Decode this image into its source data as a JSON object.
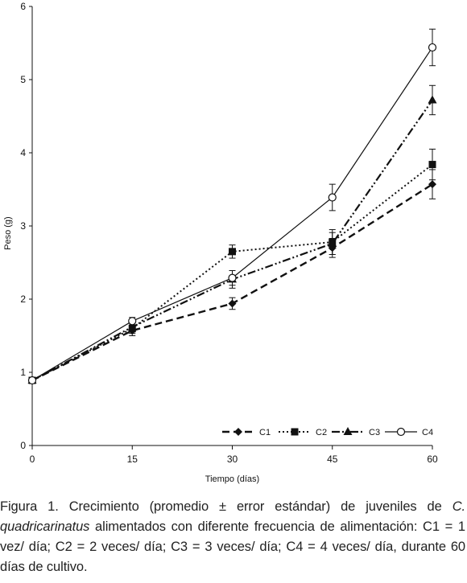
{
  "chart_data": {
    "type": "line",
    "x": [
      0,
      15,
      30,
      45,
      60
    ],
    "xlabel": "Tiempo (días)",
    "ylabel": "Peso (g)",
    "xticks": [
      "0",
      "15",
      "30",
      "45",
      "60"
    ],
    "yticks": [
      "0",
      "1",
      "2",
      "3",
      "4",
      "5",
      "6"
    ],
    "xlim": [
      0,
      60
    ],
    "ylim": [
      0,
      6
    ],
    "grid": false,
    "legend_position": "bottom-right",
    "series": [
      {
        "name": "C1",
        "values": [
          0.89,
          1.57,
          1.94,
          2.7,
          3.57
        ],
        "errors": [
          0.02,
          0.07,
          0.08,
          0.13,
          0.2
        ],
        "marker": "diamond",
        "line": "long-dash"
      },
      {
        "name": "C2",
        "values": [
          0.89,
          1.6,
          2.65,
          2.78,
          3.84
        ],
        "errors": [
          0.02,
          0.07,
          0.09,
          0.17,
          0.21
        ],
        "marker": "square",
        "line": "dotted"
      },
      {
        "name": "C3",
        "values": [
          0.89,
          1.62,
          2.27,
          2.76,
          4.72
        ],
        "errors": [
          0.02,
          0.07,
          0.12,
          0.15,
          0.2
        ],
        "marker": "triangle",
        "line": "dash-dot-dot"
      },
      {
        "name": "C4",
        "values": [
          0.89,
          1.7,
          2.29,
          3.39,
          5.44
        ],
        "errors": [
          0.02,
          0.05,
          0.1,
          0.18,
          0.25
        ],
        "marker": "circle-open",
        "line": "solid"
      }
    ]
  },
  "caption": {
    "part1": "Figura 1. Crecimiento (promedio ± error estándar) de juveniles de ",
    "part2": "C. quadricarinatus",
    "part3": " alimentados con diferente frecuencia de alimentación: C1 = 1 vez/ día; C2 = 2 veces/ día; C3 = 3 veces/ día; C4 = 4 veces/ día, durante 60 días de cultivo."
  }
}
